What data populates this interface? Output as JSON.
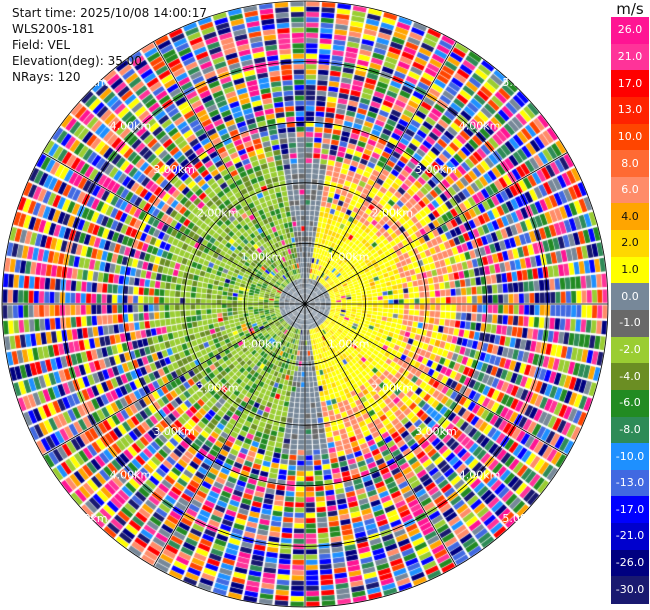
{
  "header": {
    "start_time": "Start time: 2025/10/08 14:00:17",
    "instrument": "WLS200s-181",
    "field": "Field: VEL",
    "elevation": "Elevation(deg): 35.00",
    "nrays": "NRays: 120"
  },
  "colorbar": {
    "unit": "m/s",
    "ticks": [
      "26.0",
      "21.0",
      "17.0",
      "13.0",
      "10.0",
      "8.0",
      "6.0",
      "4.0",
      "2.0",
      "1.0",
      "0.0",
      "-1.0",
      "-2.0",
      "-4.0",
      "-6.0",
      "-8.0",
      "-10.0",
      "-13.0",
      "-17.0",
      "-21.0",
      "-26.0",
      "-30.0"
    ],
    "colors": [
      "#ff1493",
      "#ff3399",
      "#ff0000",
      "#ff2200",
      "#ff4500",
      "#ff6a33",
      "#ff8c69",
      "#ffa500",
      "#ffd700",
      "#ffff00",
      "#778899",
      "#696969",
      "#9acd32",
      "#6b8e23",
      "#228b22",
      "#2e8b57",
      "#1e90ff",
      "#4169e1",
      "#0000ff",
      "#0000cd",
      "#000080",
      "#191970"
    ]
  },
  "chart_data": {
    "type": "heatmap",
    "projection": "ppi",
    "field": "VEL",
    "units": "m/s",
    "nrays": 120,
    "elevation_deg": 35.0,
    "value_range": [
      -30.0,
      30.0
    ],
    "range_rings_km": [
      1.0,
      2.0,
      3.0,
      4.0,
      5.0
    ],
    "ring_labels": [
      "1.00km",
      "2.00km",
      "3.00km",
      "4.00km",
      "5.00km"
    ],
    "max_range_km": 5.0,
    "radial_lines_deg": [
      0,
      30,
      60,
      90,
      120,
      150,
      180,
      210,
      240,
      270,
      300,
      330
    ],
    "pattern": "noise beyond ~2.5 km; positive (yellow/orange) velocities on east side, negative (green/olive) on west side, near-zero (grey) in centre"
  }
}
